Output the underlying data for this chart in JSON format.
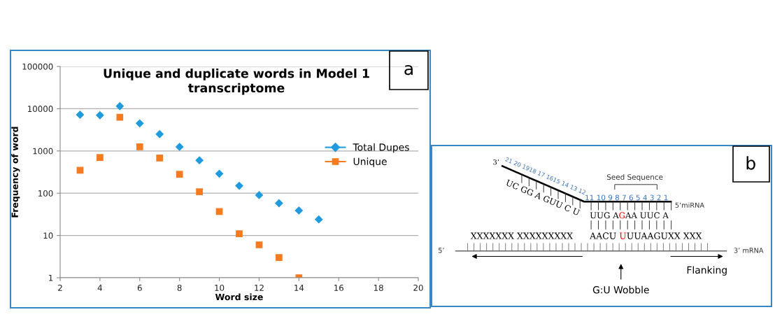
{
  "chart_data": [
    {
      "type": "scatter",
      "title": "Unique and duplicate words in Model 1 transcriptome",
      "xlabel": "Word size",
      "ylabel": "Frequency of word",
      "log": "y",
      "xlim": [
        2,
        20
      ],
      "xticks": [
        2,
        4,
        6,
        8,
        10,
        12,
        14,
        16,
        18,
        20
      ],
      "ylim": [
        1,
        100000
      ],
      "yticks": [
        1,
        10,
        100,
        1000,
        10000,
        100000
      ],
      "grid": "y",
      "legend": "right",
      "series": [
        {
          "name": "Total Dupes",
          "color": "#1f9bde",
          "marker": "diamond",
          "x": [
            3,
            4,
            5,
            6,
            7,
            8,
            9,
            10,
            11,
            12,
            13,
            14,
            15
          ],
          "values": [
            7200,
            7000,
            11500,
            4500,
            2500,
            1250,
            600,
            290,
            150,
            90,
            58,
            39,
            24
          ]
        },
        {
          "name": "Unique",
          "color": "#f47b20",
          "marker": "square",
          "x": [
            3,
            4,
            5,
            6,
            7,
            8,
            9,
            10,
            11,
            12,
            13,
            14
          ],
          "values": [
            350,
            700,
            6300,
            1250,
            680,
            280,
            108,
            37,
            11,
            6,
            3,
            1
          ]
        }
      ],
      "annotations": [
        "a"
      ]
    },
    {
      "type": "other",
      "annotations": [
        "b",
        "3’",
        "21 20 1918 17 1615 14 13 12",
        "UC GG A GUU C U",
        "Seed Sequence",
        "11 10 9 8 7 6 5 4 3 2 1",
        "5’miRNA",
        "UUG A",
        "G",
        "AA UUC A",
        "XXXXXXX XXXXXXXXX",
        "AACU ",
        "U",
        "UUAAGUXX XXX",
        "5’",
        "3’ mRNA",
        "Flanking",
        "G:U Wobble"
      ]
    }
  ]
}
